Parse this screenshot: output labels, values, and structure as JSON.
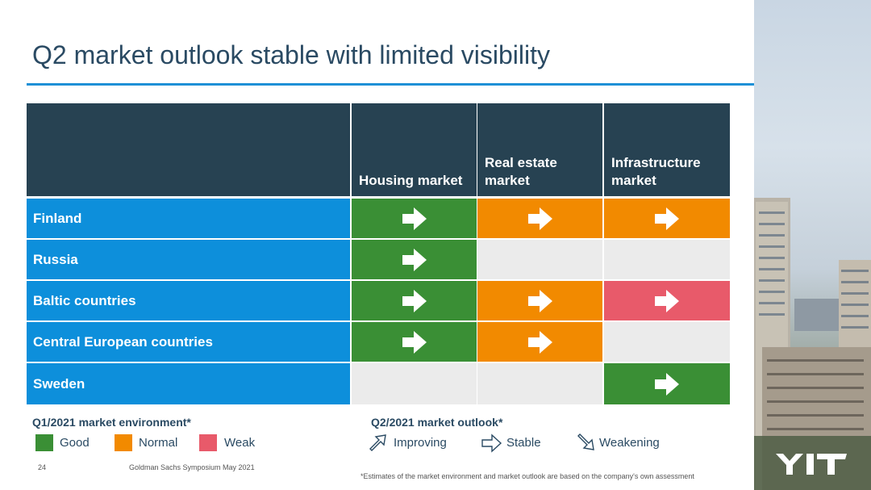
{
  "slide": {
    "title": "Q2 market outlook stable with limited visibility"
  },
  "table": {
    "columns": [
      "Housing market",
      "Real estate market",
      "Infrastructure market"
    ],
    "rows": [
      {
        "label": "Finland",
        "cells": [
          "good",
          "normal",
          "normal"
        ]
      },
      {
        "label": "Russia",
        "cells": [
          "good",
          "empty",
          "empty"
        ]
      },
      {
        "label": "Baltic countries",
        "cells": [
          "good",
          "normal",
          "weak"
        ]
      },
      {
        "label": "Central European countries",
        "cells": [
          "good",
          "normal",
          "empty"
        ]
      },
      {
        "label": "Sweden",
        "cells": [
          "empty",
          "empty",
          "good"
        ]
      }
    ],
    "arrow_icon": "arrow-right-icon"
  },
  "legend": {
    "environment_title": "Q1/2021 market environment*",
    "good": "Good",
    "normal": "Normal",
    "weak": "Weak",
    "outlook_title": "Q2/2021 market outlook*",
    "improving": "Improving",
    "stable": "Stable",
    "weakening": "Weakening"
  },
  "colors": {
    "good": "#3a8f35",
    "normal": "#f28a00",
    "weak": "#e85a6a",
    "header": "#274252",
    "row_label": "#0d8fdb"
  },
  "footer": {
    "page_number": "24",
    "event": "Goldman Sachs Symposium  May 2021",
    "footnote": "*Estimates of the market environment and market outlook are based on the company's own assessment"
  },
  "brand": {
    "logo": "YIT"
  }
}
